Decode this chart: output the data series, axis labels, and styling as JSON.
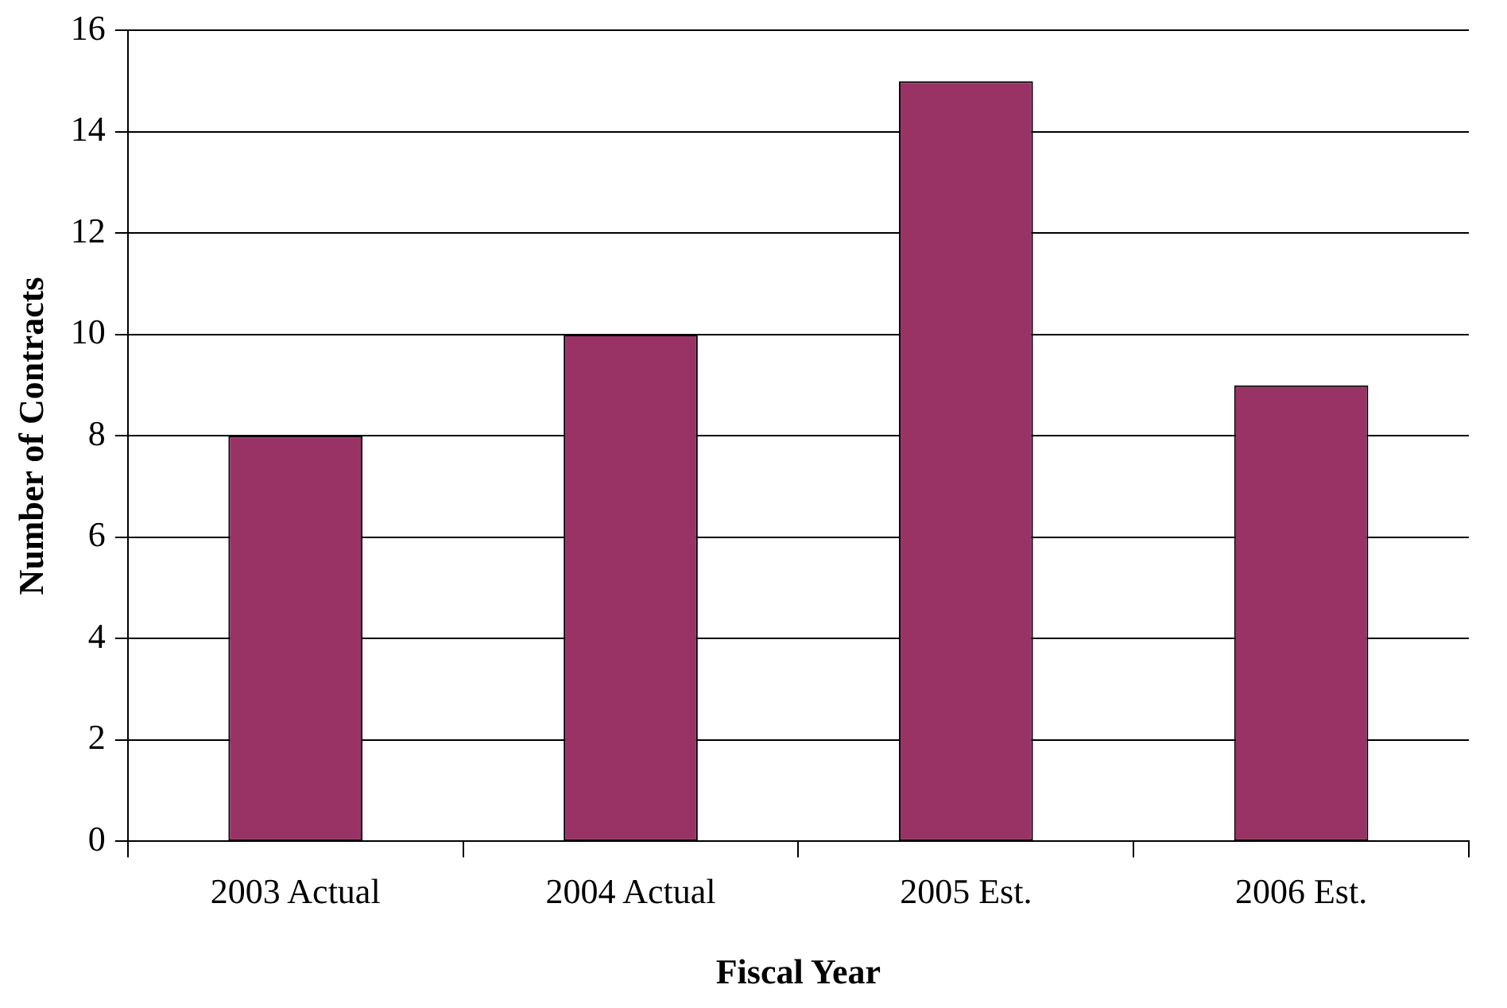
{
  "chart_data": {
    "type": "bar",
    "xlabel": "Fiscal Year",
    "ylabel": "Number of Contracts",
    "categories": [
      "2003 Actual",
      "2004 Actual",
      "2005 Est.",
      "2006 Est."
    ],
    "values": [
      8,
      10,
      15,
      9
    ],
    "color": "#993366",
    "ylim": [
      0,
      16
    ],
    "yticks": [
      0,
      2,
      4,
      6,
      8,
      10,
      12,
      14,
      16
    ],
    "grid": "y",
    "legend": false
  }
}
